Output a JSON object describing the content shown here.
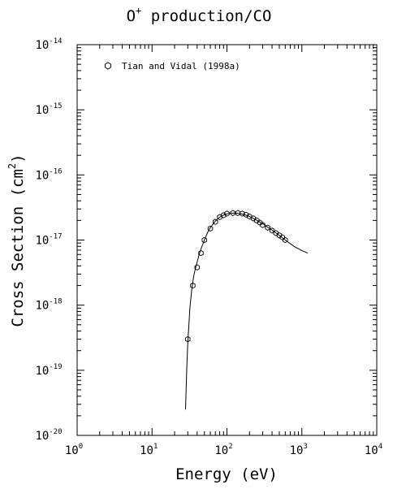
{
  "chart_data": {
    "type": "scatter",
    "title_main": "O",
    "title_sup": "+",
    "title_rest": " production/CO",
    "xlabel": "Energy (eV)",
    "ylabel_main": "Cross Section (cm",
    "ylabel_sup": "2",
    "ylabel_close": ")",
    "x_scale": "log",
    "y_scale": "log",
    "xlim": [
      1,
      10000
    ],
    "ylim": [
      1e-20,
      1e-14
    ],
    "grid": false,
    "legend_position": "top-left",
    "x_ticks": [
      {
        "base": "10",
        "exp": "0",
        "value": 1
      },
      {
        "base": "10",
        "exp": "1",
        "value": 10
      },
      {
        "base": "10",
        "exp": "2",
        "value": 100
      },
      {
        "base": "10",
        "exp": "3",
        "value": 1000
      },
      {
        "base": "10",
        "exp": "4",
        "value": 10000
      }
    ],
    "y_ticks": [
      {
        "base": "10",
        "exp": "-20",
        "value": 1e-20
      },
      {
        "base": "10",
        "exp": "-19",
        "value": 1e-19
      },
      {
        "base": "10",
        "exp": "-18",
        "value": 1e-18
      },
      {
        "base": "10",
        "exp": "-17",
        "value": 1e-17
      },
      {
        "base": "10",
        "exp": "-16",
        "value": 1e-16
      },
      {
        "base": "10",
        "exp": "-15",
        "value": 1e-15
      },
      {
        "base": "10",
        "exp": "-14",
        "value": 1e-14
      }
    ],
    "series": [
      {
        "name": "Tian and Vidal (1998a)",
        "marker": "hexagon-open",
        "x": [
          30,
          35,
          40,
          45,
          50,
          60,
          70,
          80,
          90,
          100,
          120,
          140,
          160,
          180,
          200,
          225,
          250,
          275,
          300,
          350,
          400,
          450,
          500,
          550,
          600
        ],
        "y": [
          3e-19,
          2e-18,
          3.8e-18,
          6.3e-18,
          1e-17,
          1.5e-17,
          1.9e-17,
          2.25e-17,
          2.4e-17,
          2.55e-17,
          2.6e-17,
          2.6e-17,
          2.55e-17,
          2.45e-17,
          2.3e-17,
          2.15e-17,
          2e-17,
          1.85e-17,
          1.7e-17,
          1.55e-17,
          1.4e-17,
          1.28e-17,
          1.18e-17,
          1.1e-17,
          1e-17
        ]
      },
      {
        "type": "line",
        "x": [
          28,
          29,
          30,
          32,
          34,
          36,
          38,
          40,
          43,
          46,
          50,
          55,
          60,
          70,
          80,
          90,
          100,
          110,
          125,
          140,
          160,
          180,
          200,
          250,
          300,
          400,
          500,
          600,
          700,
          800,
          1000,
          1200
        ],
        "y": [
          2.5e-20,
          1e-19,
          2.6e-19,
          9e-19,
          1.8e-18,
          2.8e-18,
          3.7e-18,
          4.6e-18,
          6.2e-18,
          7.8e-18,
          1e-17,
          1.3e-17,
          1.55e-17,
          1.95e-17,
          2.25e-17,
          2.42e-17,
          2.52e-17,
          2.58e-17,
          2.6e-17,
          2.58e-17,
          2.5e-17,
          2.4e-17,
          2.3e-17,
          2.02e-17,
          1.78e-17,
          1.42e-17,
          1.18e-17,
          1e-17,
          8.8e-18,
          7.9e-18,
          6.9e-18,
          6.3e-18
        ]
      }
    ]
  }
}
